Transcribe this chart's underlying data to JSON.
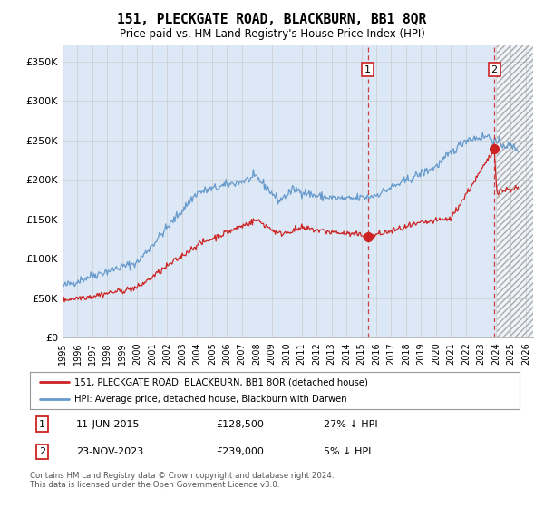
{
  "title": "151, PLECKGATE ROAD, BLACKBURN, BB1 8QR",
  "subtitle": "Price paid vs. HM Land Registry's House Price Index (HPI)",
  "ylim": [
    0,
    370000
  ],
  "xlim_start": 1995.0,
  "xlim_end": 2026.5,
  "yticks": [
    0,
    50000,
    100000,
    150000,
    200000,
    250000,
    300000,
    350000
  ],
  "ytick_labels": [
    "£0",
    "£50K",
    "£100K",
    "£150K",
    "£200K",
    "£250K",
    "£300K",
    "£350K"
  ],
  "hpi_color": "#6699cc",
  "price_color": "#cc2222",
  "sale1_date_x": 2015.44,
  "sale1_price": 128500,
  "sale1_label": "1",
  "sale2_date_x": 2023.9,
  "sale2_price": 239000,
  "sale2_label": "2",
  "hatch_start": 2024.08,
  "grid_color": "#cccccc",
  "bg_color": "#ffffff",
  "plot_bg_color": "#dce8f5",
  "footnote": "Contains HM Land Registry data © Crown copyright and database right 2024.\nThis data is licensed under the Open Government Licence v3.0.",
  "legend_line1": "151, PLECKGATE ROAD, BLACKBURN, BB1 8QR (detached house)",
  "legend_line2": "HPI: Average price, detached house, Blackburn with Darwen",
  "annotation1_date": "11-JUN-2015",
  "annotation1_price": "£128,500",
  "annotation1_hpi": "27% ↓ HPI",
  "annotation2_date": "23-NOV-2023",
  "annotation2_price": "£239,000",
  "annotation2_hpi": "5% ↓ HPI"
}
